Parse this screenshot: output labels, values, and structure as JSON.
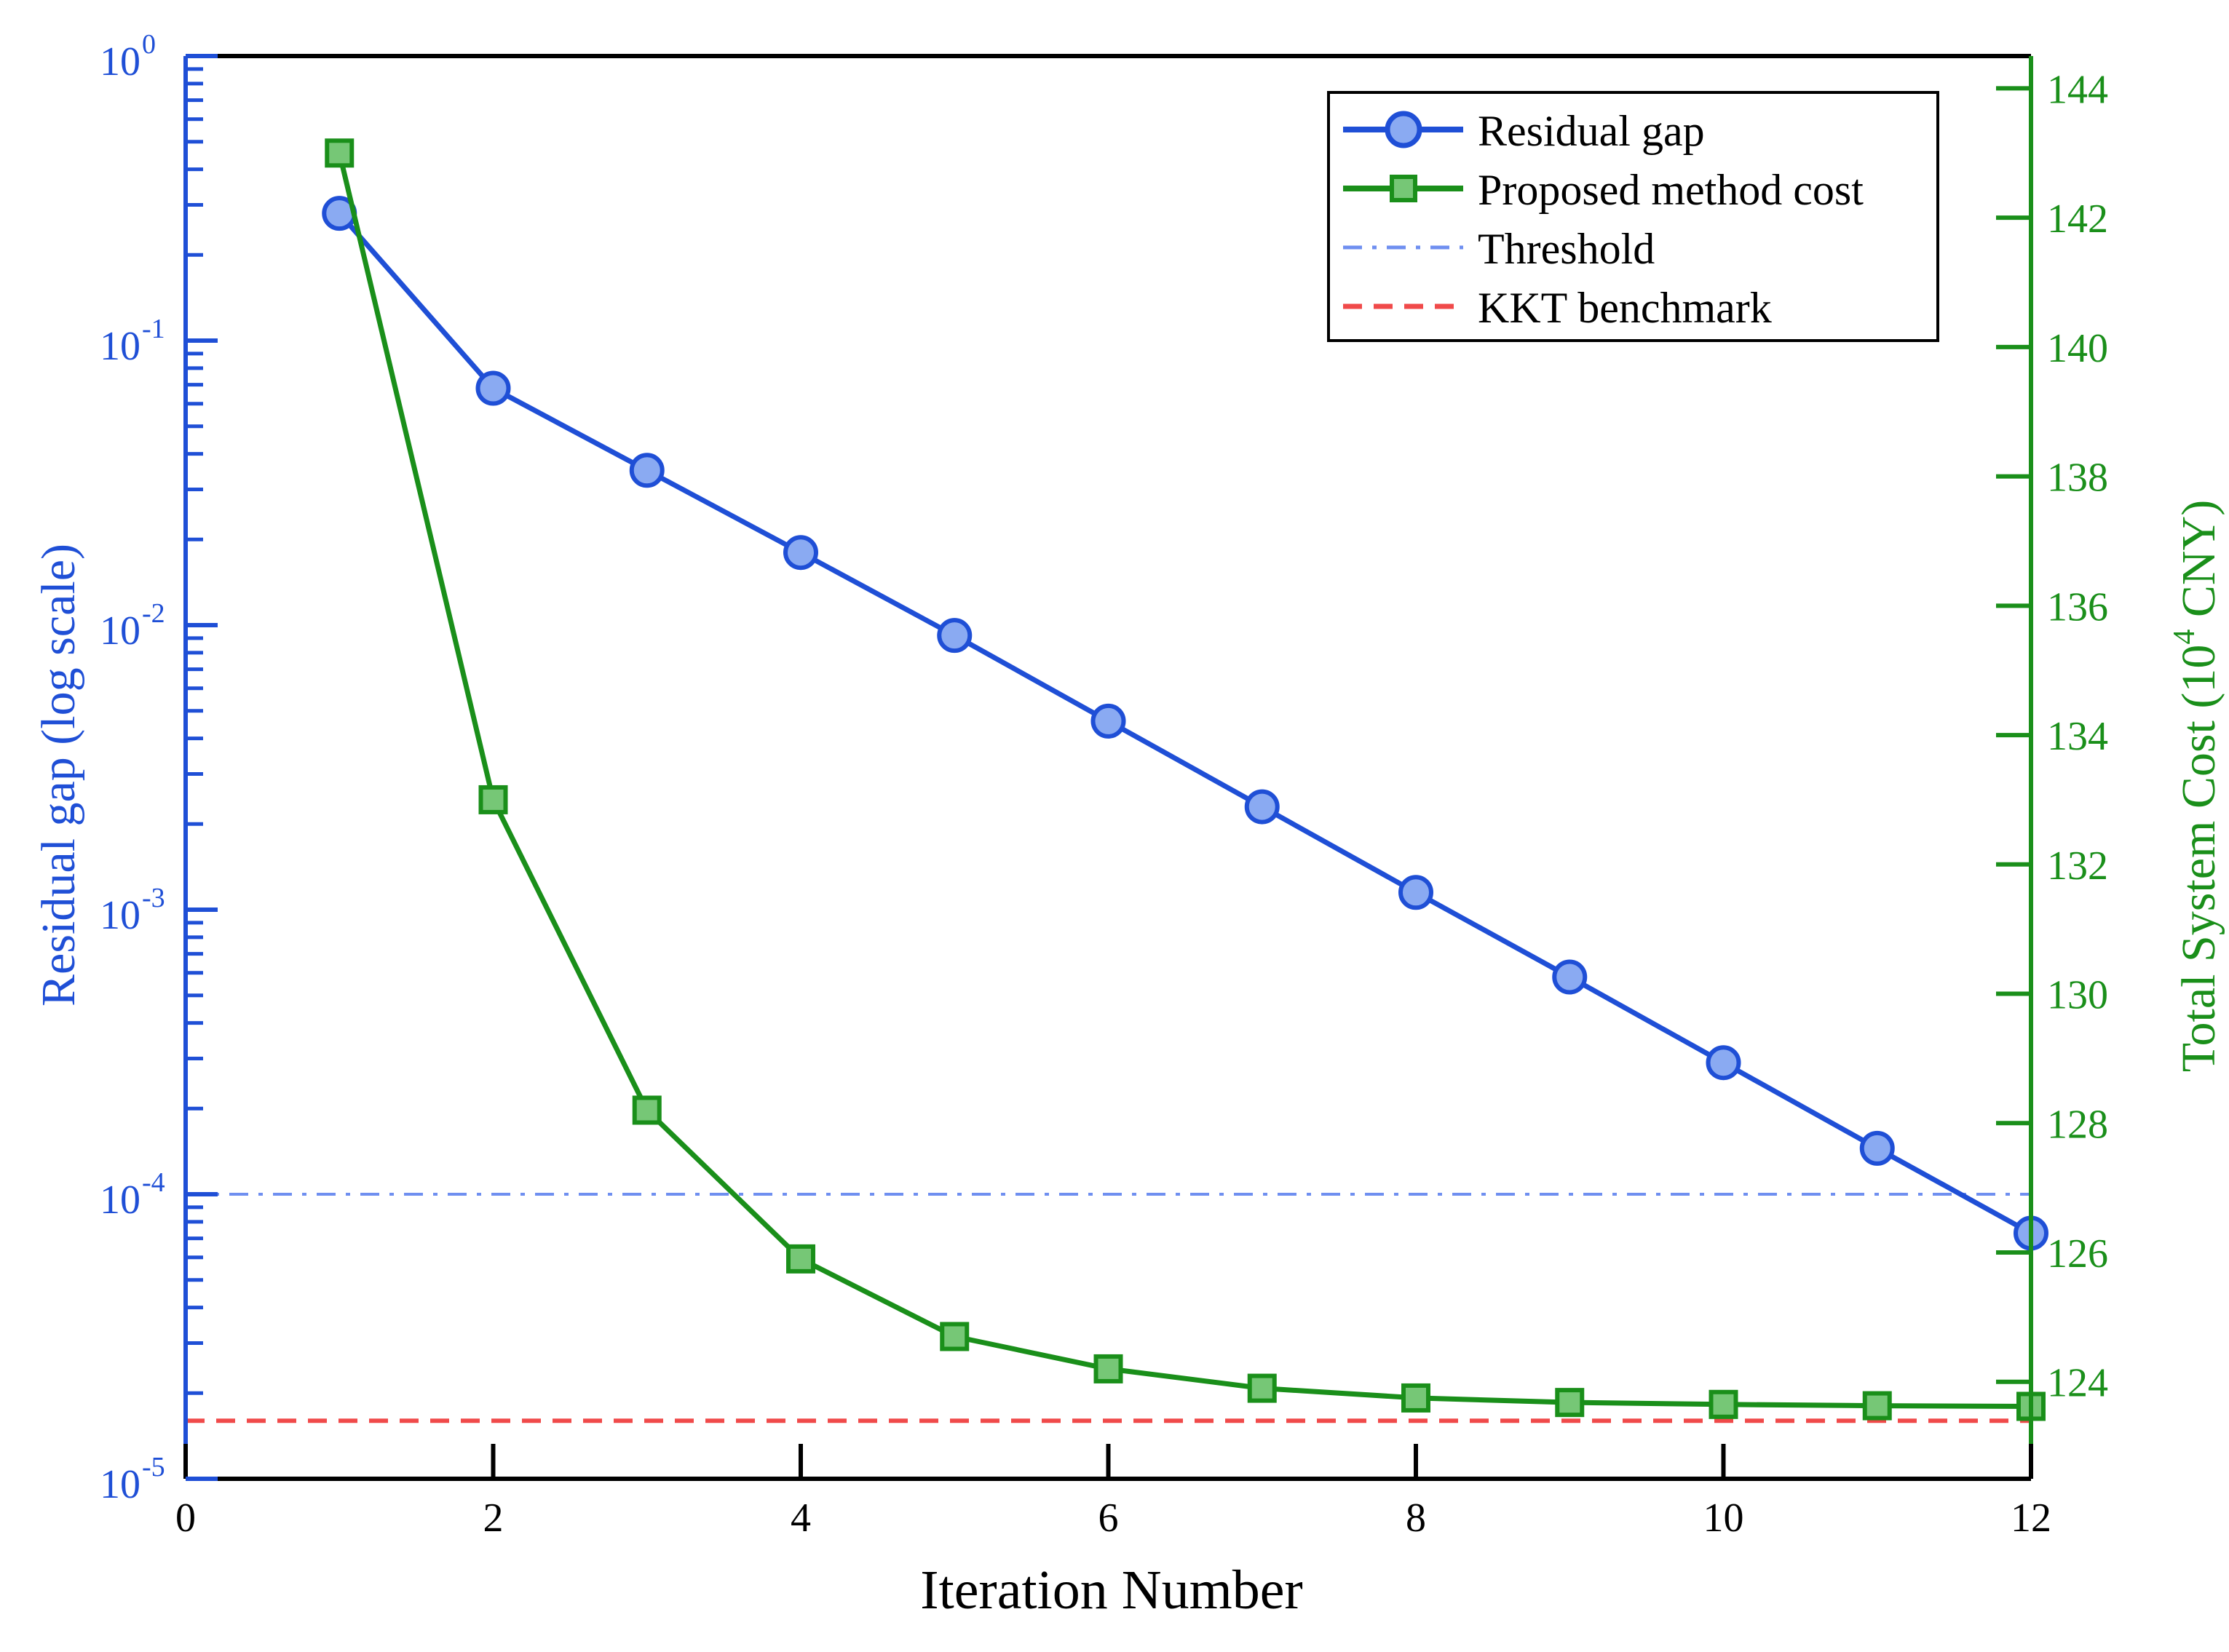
{
  "chart_data": {
    "type": "line",
    "title": "",
    "xlabel": "Iteration Number",
    "xlim": [
      0,
      12
    ],
    "xticks": [
      0,
      2,
      4,
      6,
      8,
      10,
      12
    ],
    "y_left": {
      "label": "Residual gap (log scale)",
      "scale": "log",
      "lim": [
        1e-05,
        1
      ],
      "ticks": [
        {
          "value": 1e-05,
          "base": "10",
          "exp": "-5"
        },
        {
          "value": 0.0001,
          "base": "10",
          "exp": "-4"
        },
        {
          "value": 0.001,
          "base": "10",
          "exp": "-3"
        },
        {
          "value": 0.01,
          "base": "10",
          "exp": "-2"
        },
        {
          "value": 0.1,
          "base": "10",
          "exp": "-1"
        },
        {
          "value": 1,
          "base": "10",
          "exp": "0"
        }
      ],
      "color": "#1f4fd6"
    },
    "y_right": {
      "label_main": "Total System Cost (10",
      "label_exp": "4",
      "label_tail": " CNY)",
      "scale": "linear",
      "lim": [
        122.5,
        144.5
      ],
      "ticks": [
        124,
        126,
        128,
        130,
        132,
        134,
        136,
        138,
        140,
        142,
        144
      ],
      "color": "#1a8f1a"
    },
    "series": [
      {
        "name": "Residual gap",
        "axis": "left",
        "marker": "circle",
        "line_color": "#1f4fd6",
        "marker_fill": "#8aaaf2",
        "x": [
          1,
          2,
          3,
          4,
          5,
          6,
          7,
          8,
          9,
          10,
          11,
          12
        ],
        "y": [
          0.28,
          0.068,
          0.035,
          0.018,
          0.0092,
          0.0046,
          0.0023,
          0.00115,
          0.00058,
          0.00029,
          0.000145,
          7.3e-05
        ]
      },
      {
        "name": "Proposed method cost",
        "axis": "right",
        "marker": "square",
        "line_color": "#1a8f1a",
        "marker_fill": "#76c776",
        "x": [
          1,
          2,
          3,
          4,
          5,
          6,
          7,
          8,
          9,
          10,
          11,
          12
        ],
        "y": [
          143.0,
          133.0,
          128.2,
          125.9,
          124.7,
          124.2,
          123.9,
          123.75,
          123.68,
          123.65,
          123.63,
          123.62
        ]
      }
    ],
    "reference_lines": [
      {
        "name": "Threshold",
        "axis": "left",
        "value": 0.0001,
        "color": "#6f8ff0",
        "style": "dash-dot"
      },
      {
        "name": "KKT benchmark",
        "axis": "left",
        "value": 1.6e-05,
        "color": "#f04a4a",
        "style": "dashed"
      }
    ],
    "legend": {
      "placement": "top-right",
      "entries": [
        "Residual gap",
        "Proposed method cost",
        "Threshold",
        "KKT benchmark"
      ]
    },
    "grid": false
  }
}
